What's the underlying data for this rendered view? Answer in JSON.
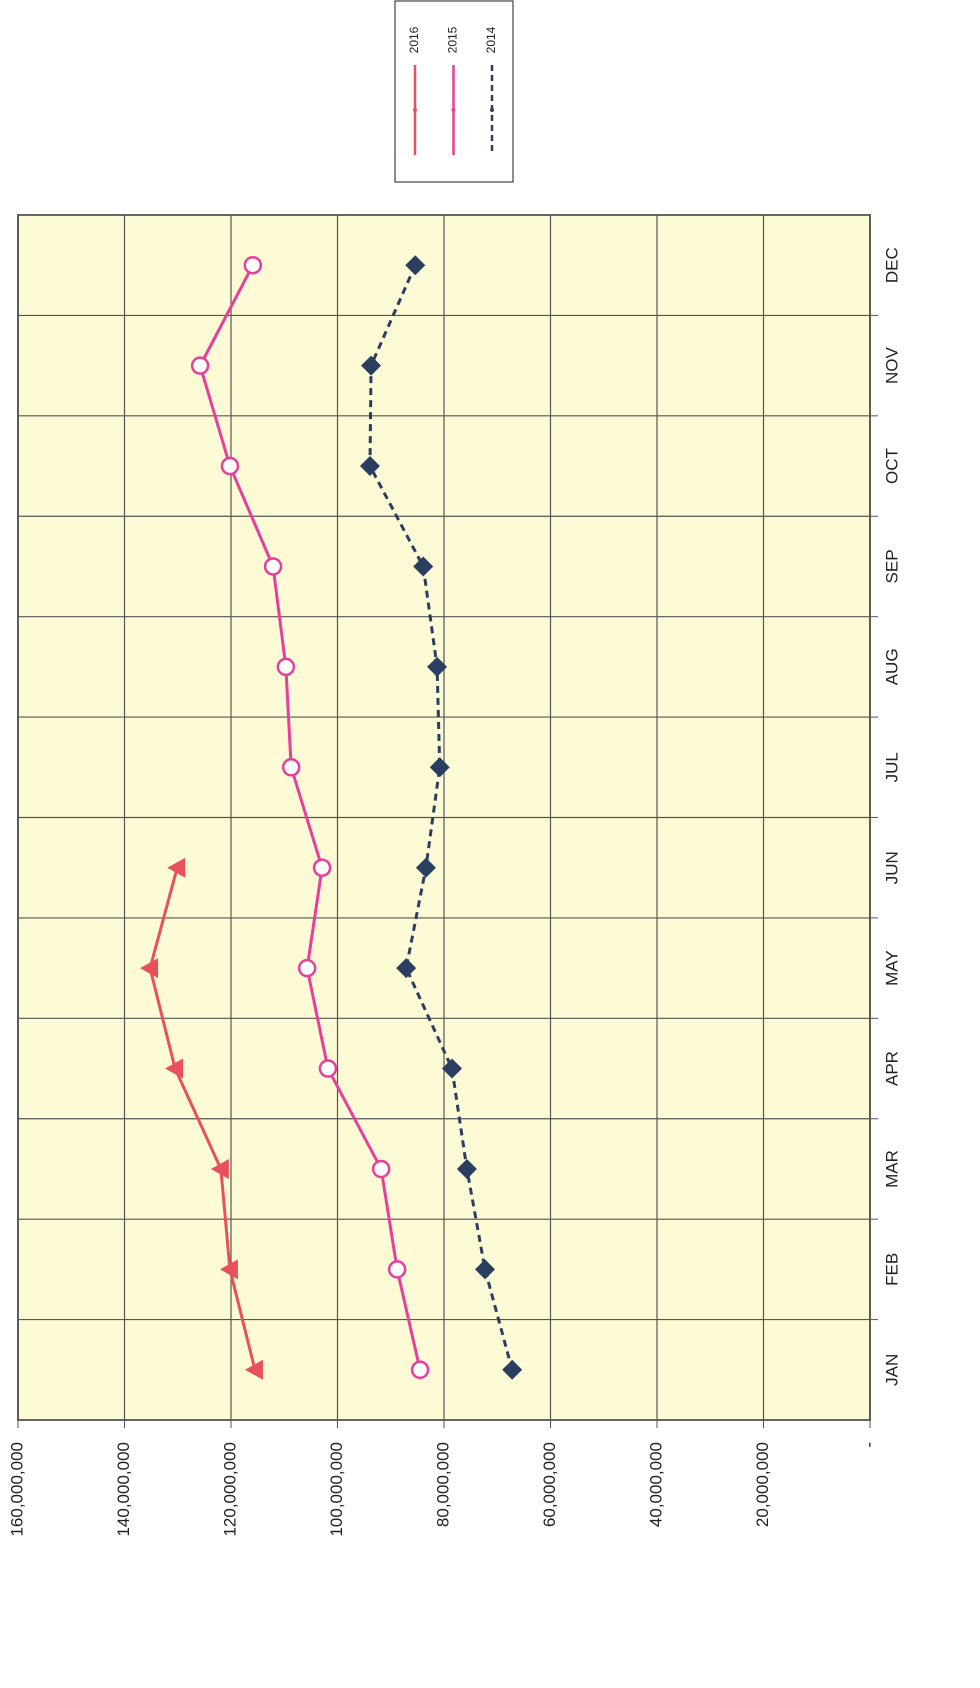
{
  "chart_data": {
    "type": "line",
    "orientation": "rotated",
    "categories": [
      "JAN",
      "FEB",
      "MAR",
      "APR",
      "MAY",
      "JUN",
      "JUL",
      "AUG",
      "SEP",
      "OCT",
      "NOV",
      "DEC"
    ],
    "series": [
      {
        "name": "2016",
        "color": "#e8505b",
        "marker": "triangle",
        "dashed": false,
        "values": [
          115500000,
          120200000,
          121900000,
          130500000,
          135200000,
          130100000,
          null,
          null,
          null,
          null,
          null,
          null
        ]
      },
      {
        "name": "2015",
        "color": "#e83e9c",
        "marker": "circle",
        "dashed": false,
        "values": [
          84500000,
          88800000,
          91800000,
          101800000,
          105700000,
          102900000,
          108700000,
          109700000,
          112100000,
          120200000,
          125800000,
          115900000
        ]
      },
      {
        "name": "2014",
        "color": "#2a3f5f",
        "marker": "diamond",
        "dashed": true,
        "values": [
          67200000,
          72300000,
          75700000,
          78500000,
          87100000,
          83400000,
          80800000,
          81300000,
          83900000,
          93900000,
          93700000,
          85400000
        ]
      }
    ],
    "ylim": [
      0,
      160000000
    ],
    "yticks": [
      {
        "value": 0,
        "label": "-"
      },
      {
        "value": 20000000,
        "label": "20,000,000"
      },
      {
        "value": 40000000,
        "label": "40,000,000"
      },
      {
        "value": 60000000,
        "label": "60,000,000"
      },
      {
        "value": 80000000,
        "label": "80,000,000"
      },
      {
        "value": 100000000,
        "label": "100,000,000"
      },
      {
        "value": 120000000,
        "label": "120,000,000"
      },
      {
        "value": 140000000,
        "label": "140,000,000"
      },
      {
        "value": 160000000,
        "label": "160,000,000"
      }
    ],
    "grid": true
  }
}
